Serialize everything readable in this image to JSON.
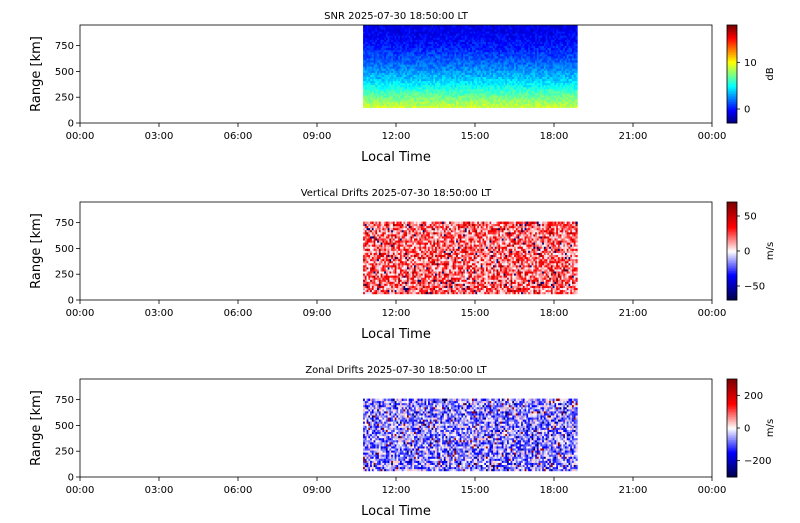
{
  "chart_data": [
    {
      "type": "heatmap",
      "title": "SNR 2025-07-30 18:50:00 LT",
      "xlabel": "Local Time",
      "ylabel": "Range [km]",
      "xlim": [
        "00:00",
        "24:00"
      ],
      "xticks": [
        "00:00",
        "03:00",
        "06:00",
        "09:00",
        "12:00",
        "15:00",
        "18:00",
        "21:00",
        "00:00"
      ],
      "ylim": [
        0,
        950
      ],
      "yticks": [
        0,
        250,
        500,
        750
      ],
      "data_extent": {
        "time_start": "10:45",
        "time_end": "18:50",
        "range_bottom": 150,
        "range_top": 950
      },
      "colorbar": {
        "label": "dB",
        "colormap": "jet",
        "range": [
          -3,
          18
        ],
        "ticks": [
          0,
          10
        ]
      },
      "value_profile_by_range": [
        {
          "range": 150,
          "value": 9
        },
        {
          "range": 250,
          "value": 7
        },
        {
          "range": 400,
          "value": 4
        },
        {
          "range": 550,
          "value": 2
        },
        {
          "range": 750,
          "value": 0
        },
        {
          "range": 950,
          "value": -1
        }
      ]
    },
    {
      "type": "heatmap",
      "title": "Vertical Drifts 2025-07-30 18:50:00 LT",
      "xlabel": "Local Time",
      "ylabel": "Range [km]",
      "xlim": [
        "00:00",
        "24:00"
      ],
      "xticks": [
        "00:00",
        "03:00",
        "06:00",
        "09:00",
        "12:00",
        "15:00",
        "18:00",
        "21:00",
        "00:00"
      ],
      "ylim": [
        0,
        950
      ],
      "yticks": [
        0,
        250,
        500,
        750
      ],
      "data_extent": {
        "time_start": "10:45",
        "time_end": "18:50",
        "range_bottom": 60,
        "range_top": 760
      },
      "colorbar": {
        "label": "m/s",
        "colormap": "seismic",
        "range": [
          -70,
          70
        ],
        "ticks": [
          -50,
          0,
          50
        ]
      },
      "typical_value": 20
    },
    {
      "type": "heatmap",
      "title": "Zonal Drifts 2025-07-30 18:50:00 LT",
      "xlabel": "Local Time",
      "ylabel": "Range [km]",
      "xlim": [
        "00:00",
        "24:00"
      ],
      "xticks": [
        "00:00",
        "03:00",
        "06:00",
        "09:00",
        "12:00",
        "15:00",
        "18:00",
        "21:00",
        "00:00"
      ],
      "ylim": [
        0,
        950
      ],
      "yticks": [
        0,
        250,
        500,
        750
      ],
      "data_extent": {
        "time_start": "10:45",
        "time_end": "18:50",
        "range_bottom": 60,
        "range_top": 760
      },
      "colorbar": {
        "label": "m/s",
        "colormap": "seismic",
        "range": [
          -300,
          300
        ],
        "ticks": [
          -200,
          0,
          200
        ]
      },
      "typical_value": -60
    }
  ]
}
